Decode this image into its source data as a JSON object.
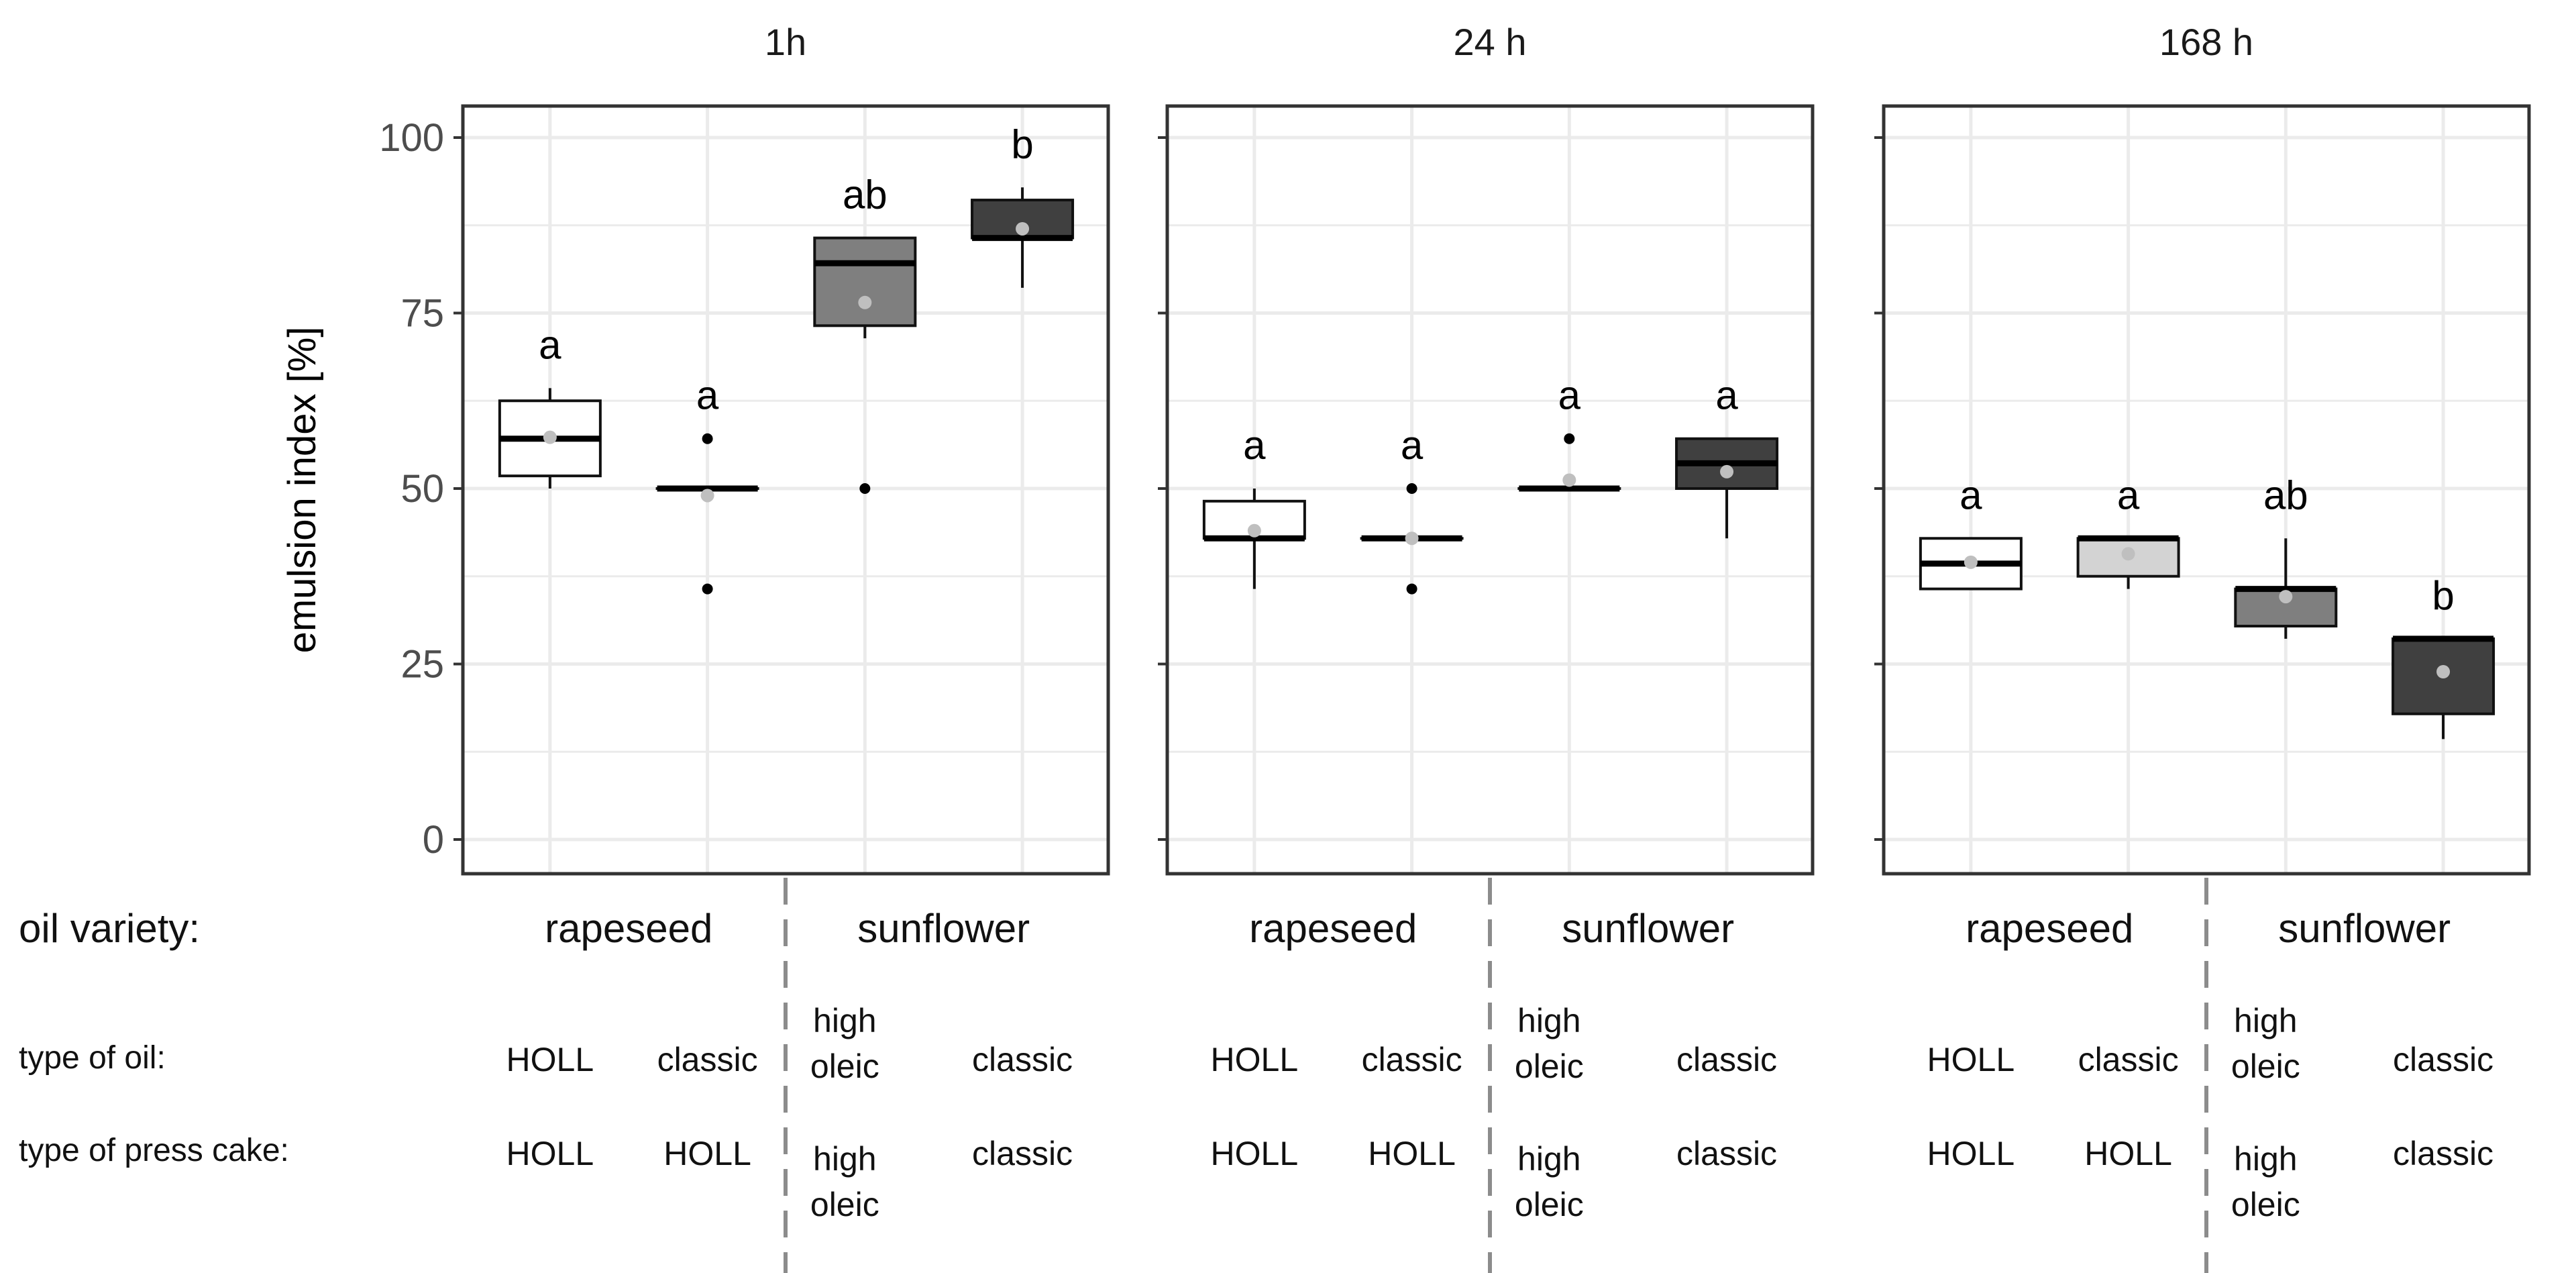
{
  "chart_data": {
    "type": "boxplot",
    "ylabel": "emulsion index [%]",
    "ylim": [
      0,
      100
    ],
    "yticks": [
      "0",
      "25",
      "50",
      "75",
      "100"
    ],
    "facets": [
      {
        "title": "1h",
        "boxes": [
          {
            "q1": 51.8,
            "median": 57.1,
            "q3": 62.5,
            "whisker_low": 50.0,
            "whisker_high": 64.3,
            "mean": 57.3,
            "outliers": [],
            "fill": "#ffffff",
            "sig": "a"
          },
          {
            "q1": 50.0,
            "median": 50.0,
            "q3": 50.0,
            "whisker_low": 50.0,
            "whisker_high": 50.0,
            "mean": 49.0,
            "outliers": [
              57.1,
              35.7
            ],
            "fill": "#d3d3d3",
            "sig": "a"
          },
          {
            "q1": 73.2,
            "median": 82.1,
            "q3": 85.7,
            "whisker_low": 71.4,
            "whisker_high": 85.7,
            "mean": 76.5,
            "outliers": [
              50.0
            ],
            "fill": "#7f7f7f",
            "sig": "ab"
          },
          {
            "q1": 85.7,
            "median": 85.7,
            "q3": 91.1,
            "whisker_low": 78.6,
            "whisker_high": 92.9,
            "mean": 87.0,
            "outliers": [],
            "fill": "#404040",
            "sig": "b"
          }
        ]
      },
      {
        "title": "24 h",
        "boxes": [
          {
            "q1": 42.9,
            "median": 42.9,
            "q3": 48.2,
            "whisker_low": 35.7,
            "whisker_high": 50.0,
            "mean": 44.0,
            "outliers": [],
            "fill": "#ffffff",
            "sig": "a"
          },
          {
            "q1": 42.9,
            "median": 42.9,
            "q3": 42.9,
            "whisker_low": 42.9,
            "whisker_high": 42.9,
            "mean": 42.9,
            "outliers": [
              50.0,
              35.7
            ],
            "fill": "#d3d3d3",
            "sig": "a"
          },
          {
            "q1": 50.0,
            "median": 50.0,
            "q3": 50.0,
            "whisker_low": 50.0,
            "whisker_high": 50.0,
            "mean": 51.2,
            "outliers": [
              57.1
            ],
            "fill": "#7f7f7f",
            "sig": "a"
          },
          {
            "q1": 50.0,
            "median": 53.6,
            "q3": 57.1,
            "whisker_low": 42.9,
            "whisker_high": 57.1,
            "mean": 52.4,
            "outliers": [],
            "fill": "#404040",
            "sig": "a"
          }
        ]
      },
      {
        "title": "168 h",
        "boxes": [
          {
            "q1": 35.7,
            "median": 39.3,
            "q3": 42.9,
            "whisker_low": 35.7,
            "whisker_high": 42.9,
            "mean": 39.5,
            "outliers": [],
            "fill": "#ffffff",
            "sig": "a"
          },
          {
            "q1": 37.5,
            "median": 42.9,
            "q3": 42.9,
            "whisker_low": 35.7,
            "whisker_high": 42.9,
            "mean": 40.7,
            "outliers": [],
            "fill": "#d3d3d3",
            "sig": "a"
          },
          {
            "q1": 30.4,
            "median": 35.7,
            "q3": 35.7,
            "whisker_low": 28.6,
            "whisker_high": 42.9,
            "mean": 34.6,
            "outliers": [],
            "fill": "#7f7f7f",
            "sig": "ab"
          },
          {
            "q1": 17.9,
            "median": 28.6,
            "q3": 28.6,
            "whisker_low": 14.3,
            "whisker_high": 28.6,
            "mean": 23.9,
            "outliers": [],
            "fill": "#404040",
            "sig": "b"
          }
        ]
      }
    ],
    "colors": {
      "mean_point": "#bfbfbf",
      "outlier_point": "#000000",
      "grid": "#ebebeb",
      "panel_border": "#333333",
      "divider": "#8c8c8c"
    }
  },
  "categories": {
    "oil_variety_label": "oil variety:",
    "type_of_oil_label": "type of oil:",
    "type_of_press_cake_label": "type of press cake:",
    "varieties": [
      "rapeseed",
      "sunflower"
    ],
    "type_of_oil": [
      [
        "HOLL"
      ],
      [
        "classic"
      ],
      [
        "high",
        "oleic"
      ],
      [
        "classic"
      ]
    ],
    "type_of_press_cake": [
      [
        "HOLL"
      ],
      [
        "HOLL"
      ],
      [
        "high",
        "oleic"
      ],
      [
        "classic"
      ]
    ]
  }
}
